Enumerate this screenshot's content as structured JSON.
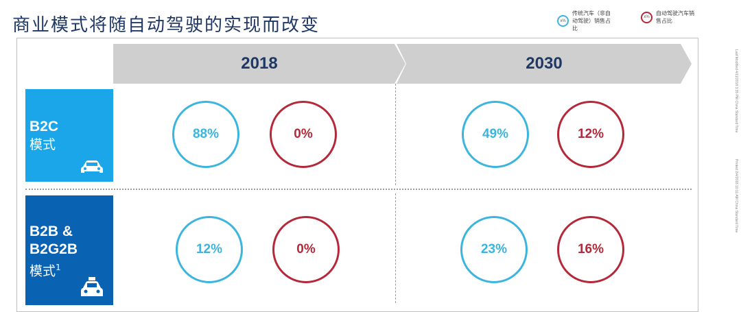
{
  "title": "商业模式将随自动驾驶的实现而改变",
  "legend": [
    {
      "marker": "x%",
      "text": "传统汽车（非自动驾驶）销售占比",
      "color": "#3bb5de"
    },
    {
      "marker": "x%",
      "text": "自动驾驶汽车销售占比",
      "color": "#b5283a"
    }
  ],
  "years": [
    "2018",
    "2030"
  ],
  "rows": [
    {
      "name_lines": [
        "B2C"
      ],
      "mode": "模式",
      "icon": "car-icon"
    },
    {
      "name_lines": [
        "B2B &",
        "B2G2B"
      ],
      "mode": "模式",
      "footnote": "1",
      "icon": "taxi-icon"
    }
  ],
  "values": {
    "b2c": {
      "y2018": {
        "traditional": "88%",
        "autonomous": "0%"
      },
      "y2030": {
        "traditional": "49%",
        "autonomous": "12%"
      }
    },
    "b2b": {
      "y2018": {
        "traditional": "12%",
        "autonomous": "0%"
      },
      "y2030": {
        "traditional": "23%",
        "autonomous": "16%"
      }
    }
  },
  "side_notes": [
    "Last Modified 4/11/2018 3:35 PM China Standard Time",
    "Printed 2/4/2018 10:11 AM China Standard Time"
  ],
  "colors": {
    "traditional": "#3bb5de",
    "autonomous": "#b5283a",
    "b2c_bg": "#1aa6e8",
    "b2b_bg": "#0a62b3",
    "header_bar": "#cfcfcf"
  }
}
